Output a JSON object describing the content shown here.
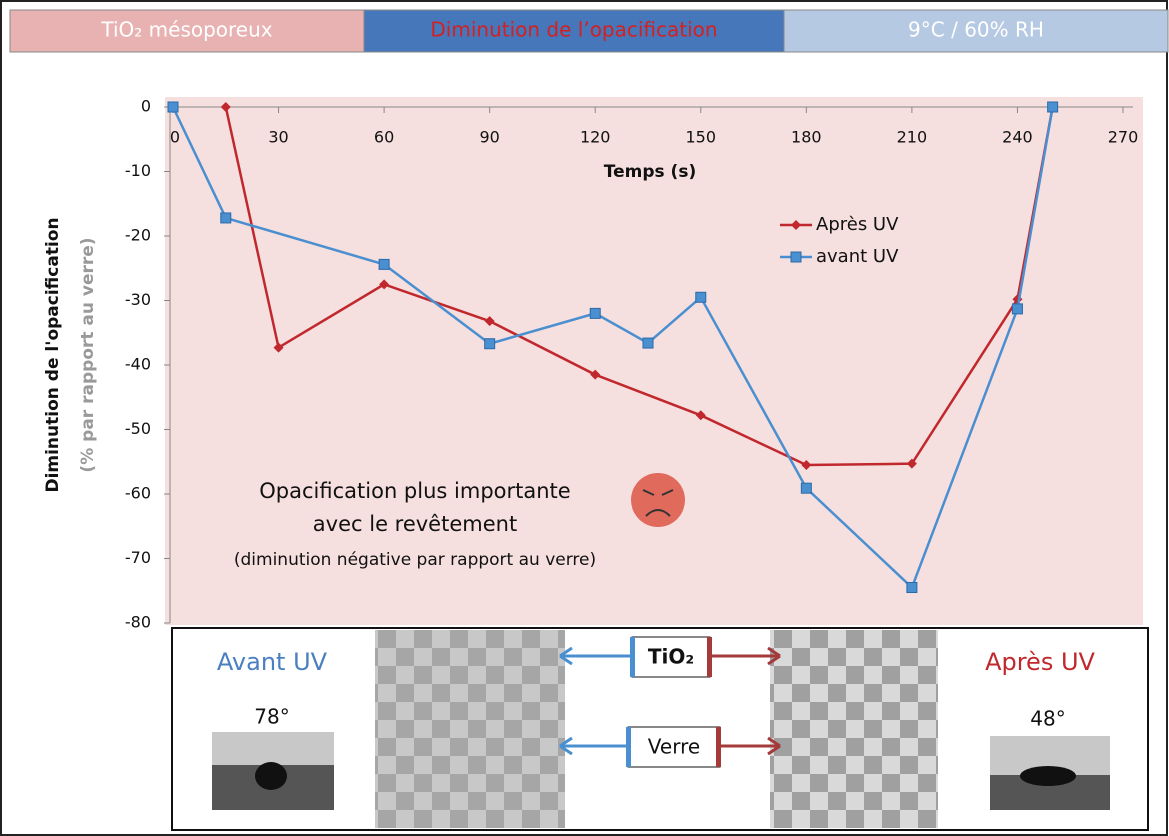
{
  "header": [
    {
      "text": "TiO₂ mésoporeux"
    },
    {
      "text": "Diminution de l’opacification"
    },
    {
      "text": "9°C / 60% RH"
    }
  ],
  "chart_data": {
    "type": "line",
    "x_label": "Temps (s)",
    "y_label": [
      "Diminution  de l'opacification",
      "(% par rapport  au verre)"
    ],
    "xlim": [
      0,
      270
    ],
    "xticks": [
      0,
      30,
      60,
      90,
      120,
      150,
      180,
      210,
      240,
      270
    ],
    "ylim": [
      -80,
      0
    ],
    "yticks": [
      0,
      -10,
      -20,
      -30,
      -40,
      -50,
      -60,
      -70,
      -80
    ],
    "series": [
      {
        "name": "Après UV",
        "color": "#c0282d",
        "marker": "diamond",
        "x": [
          15,
          30,
          60,
          90,
          120,
          150,
          180,
          210,
          240,
          250
        ],
        "values": [
          0,
          -37.3,
          -27.5,
          -33.2,
          -41.5,
          -47.8,
          -55.5,
          -55.3,
          -29.8,
          0
        ]
      },
      {
        "name": "avant UV",
        "color": "#4a8fd0",
        "marker": "square",
        "x": [
          0,
          15,
          60,
          90,
          120,
          135,
          150,
          180,
          210,
          240,
          250
        ],
        "values": [
          0,
          -17.2,
          -24.4,
          -36.7,
          -32,
          -36.6,
          -29.5,
          -59.1,
          -74.5,
          -31.3,
          0
        ]
      }
    ],
    "annotations": [
      "Opacification plus importante",
      "avec le revêtement",
      "(diminution négative par rapport au verre)"
    ]
  },
  "panel": {
    "left_label": "Avant UV",
    "left_angle": "78°",
    "right_label": "Après UV",
    "right_angle": "48°",
    "labels": [
      "TiO₂",
      "Verre"
    ]
  }
}
